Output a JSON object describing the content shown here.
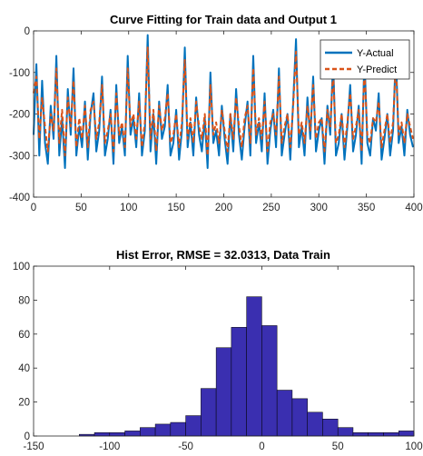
{
  "chart_data": [
    {
      "type": "line",
      "title": "Curve Fitting for Train data and Output 1",
      "xlabel": "",
      "ylabel": "",
      "xlim": [
        0,
        400
      ],
      "ylim": [
        -400,
        0
      ],
      "xticks": [
        "0",
        "50",
        "100",
        "150",
        "200",
        "250",
        "300",
        "350",
        "400"
      ],
      "yticks": [
        "0",
        "-100",
        "-200",
        "-300",
        "-400"
      ],
      "grid": false,
      "legend_position": "top-right",
      "series": [
        {
          "name": "Y-Actual",
          "color": "#0072BD",
          "style": "solid",
          "x": [
            0,
            3,
            6,
            9,
            12,
            15,
            18,
            21,
            24,
            27,
            30,
            33,
            36,
            39,
            42,
            45,
            48,
            51,
            54,
            57,
            60,
            63,
            66,
            69,
            72,
            75,
            78,
            81,
            84,
            87,
            90,
            93,
            96,
            99,
            102,
            105,
            108,
            111,
            114,
            117,
            120,
            123,
            126,
            129,
            132,
            135,
            138,
            141,
            144,
            147,
            150,
            153,
            156,
            159,
            162,
            165,
            168,
            171,
            174,
            177,
            180,
            183,
            186,
            189,
            192,
            195,
            198,
            201,
            204,
            207,
            210,
            213,
            216,
            219,
            222,
            225,
            228,
            231,
            234,
            237,
            240,
            243,
            246,
            249,
            252,
            255,
            258,
            261,
            264,
            267,
            270,
            273,
            276,
            279,
            282,
            285,
            288,
            291,
            294,
            297,
            300,
            303,
            306,
            309,
            312,
            315,
            318,
            321,
            324,
            327,
            330,
            333,
            336,
            339,
            342,
            345,
            348,
            351,
            354,
            357,
            360,
            363,
            366,
            369,
            372,
            375,
            378,
            381,
            384,
            387,
            390,
            393,
            396,
            399
          ],
          "values": [
            -250,
            -80,
            -300,
            -120,
            -270,
            -320,
            -180,
            -260,
            -60,
            -300,
            -210,
            -330,
            -140,
            -250,
            -90,
            -300,
            -230,
            -280,
            -170,
            -310,
            -200,
            -150,
            -290,
            -240,
            -110,
            -300,
            -260,
            -190,
            -320,
            -130,
            -270,
            -230,
            -300,
            -60,
            -250,
            -210,
            -280,
            -150,
            -300,
            -240,
            -10,
            -290,
            -200,
            -320,
            -170,
            -260,
            -230,
            -130,
            -300,
            -270,
            -190,
            -310,
            -240,
            -40,
            -280,
            -220,
            -300,
            -160,
            -250,
            -290,
            -210,
            -330,
            -100,
            -270,
            -240,
            -300,
            -180,
            -260,
            -320,
            -200,
            -290,
            -140,
            -250,
            -310,
            -230,
            -170,
            -300,
            -60,
            -270,
            -220,
            -290,
            -150,
            -320,
            -240,
            -190,
            -280,
            -90,
            -300,
            -250,
            -200,
            -310,
            -170,
            -20,
            -280,
            -230,
            -300,
            -160,
            -260,
            -110,
            -290,
            -240,
            -210,
            -320,
            -180,
            -250,
            -70,
            -300,
            -270,
            -200,
            -310,
            -230,
            -130,
            -290,
            -250,
            -180,
            -320,
            -60,
            -270,
            -300,
            -210,
            -240,
            -150,
            -310,
            -260,
            -200,
            -300,
            -240,
            -50,
            -270,
            -230,
            -300,
            -190,
            -250,
            -280
          ]
        },
        {
          "name": "Y-Predict",
          "color": "#D95319",
          "style": "dashed",
          "x": [
            0,
            3,
            6,
            9,
            12,
            15,
            18,
            21,
            24,
            27,
            30,
            33,
            36,
            39,
            42,
            45,
            48,
            51,
            54,
            57,
            60,
            63,
            66,
            69,
            72,
            75,
            78,
            81,
            84,
            87,
            90,
            93,
            96,
            99,
            102,
            105,
            108,
            111,
            114,
            117,
            120,
            123,
            126,
            129,
            132,
            135,
            138,
            141,
            144,
            147,
            150,
            153,
            156,
            159,
            162,
            165,
            168,
            171,
            174,
            177,
            180,
            183,
            186,
            189,
            192,
            195,
            198,
            201,
            204,
            207,
            210,
            213,
            216,
            219,
            222,
            225,
            228,
            231,
            234,
            237,
            240,
            243,
            246,
            249,
            252,
            255,
            258,
            261,
            264,
            267,
            270,
            273,
            276,
            279,
            282,
            285,
            288,
            291,
            294,
            297,
            300,
            303,
            306,
            309,
            312,
            315,
            318,
            321,
            324,
            327,
            330,
            333,
            336,
            339,
            342,
            345,
            348,
            351,
            354,
            357,
            360,
            363,
            366,
            369,
            372,
            375,
            378,
            381,
            384,
            387,
            390,
            393,
            396,
            399
          ],
          "values": [
            -150,
            -110,
            -260,
            -160,
            -230,
            -290,
            -200,
            -240,
            -90,
            -270,
            -190,
            -300,
            -160,
            -230,
            -120,
            -280,
            -210,
            -260,
            -180,
            -280,
            -190,
            -170,
            -260,
            -220,
            -130,
            -270,
            -240,
            -200,
            -290,
            -150,
            -250,
            -220,
            -280,
            -90,
            -230,
            -200,
            -260,
            -170,
            -280,
            -220,
            -40,
            -260,
            -190,
            -290,
            -180,
            -240,
            -210,
            -150,
            -270,
            -250,
            -200,
            -280,
            -220,
            -70,
            -260,
            -210,
            -270,
            -170,
            -230,
            -260,
            -200,
            -300,
            -130,
            -250,
            -220,
            -270,
            -190,
            -240,
            -290,
            -200,
            -260,
            -160,
            -230,
            -280,
            -210,
            -180,
            -270,
            -90,
            -250,
            -210,
            -260,
            -170,
            -290,
            -220,
            -200,
            -250,
            -110,
            -270,
            -230,
            -200,
            -280,
            -180,
            -50,
            -250,
            -220,
            -270,
            -180,
            -240,
            -130,
            -260,
            -220,
            -210,
            -290,
            -190,
            -230,
            -100,
            -270,
            -250,
            -200,
            -280,
            -220,
            -150,
            -260,
            -230,
            -190,
            -290,
            -90,
            -250,
            -270,
            -210,
            -220,
            -170,
            -280,
            -240,
            -200,
            -270,
            -220,
            -80,
            -250,
            -220,
            -270,
            -200,
            -230,
            -260
          ]
        }
      ]
    },
    {
      "type": "bar",
      "title": "Hist Error, RMSE = 32.0313, Data Train",
      "xlabel": "",
      "ylabel": "",
      "xlim": [
        -150,
        100
      ],
      "ylim": [
        0,
        100
      ],
      "xticks": [
        "-150",
        "-100",
        "-50",
        "0",
        "50",
        "100"
      ],
      "yticks": [
        "0",
        "20",
        "40",
        "60",
        "80",
        "100"
      ],
      "bar_color": "#3A2FB0",
      "bin_edges": [
        -120,
        -110,
        -100,
        -90,
        -80,
        -70,
        -60,
        -50,
        -40,
        -30,
        -20,
        -10,
        0,
        10,
        20,
        30,
        40,
        50,
        60,
        70,
        80,
        90,
        100
      ],
      "values": [
        1,
        2,
        2,
        3,
        5,
        7,
        8,
        12,
        28,
        52,
        64,
        82,
        65,
        27,
        22,
        14,
        10,
        5,
        2,
        2,
        2,
        3
      ]
    }
  ]
}
